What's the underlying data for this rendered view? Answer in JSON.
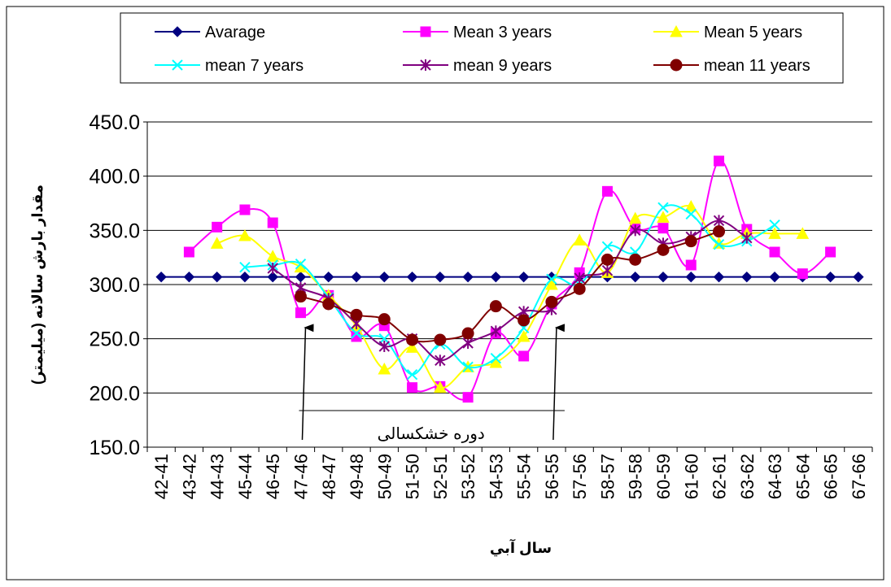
{
  "chart_data": {
    "type": "line",
    "xlabel": "سال آبي",
    "ylabel": "مقدار بارش سالانه (ميليمتر)",
    "ylim": [
      150,
      450
    ],
    "yticks": [
      "150.0",
      "200.0",
      "250.0",
      "300.0",
      "350.0",
      "400.0",
      "450.0"
    ],
    "grid": "horizontal",
    "legend_position": "top",
    "categories": [
      "42-41",
      "43-42",
      "44-43",
      "45-44",
      "46-45",
      "47-46",
      "48-47",
      "49-48",
      "50-49",
      "51-50",
      "52-51",
      "53-52",
      "54-53",
      "55-54",
      "56-55",
      "57-56",
      "58-57",
      "59-58",
      "60-59",
      "61-60",
      "62-61",
      "63-62",
      "64-63",
      "65-64",
      "66-65",
      "67-66"
    ],
    "series": [
      {
        "name": "Avarage",
        "color": "#000080",
        "marker": "diamond",
        "values": [
          307,
          307,
          307,
          307,
          307,
          307,
          307,
          307,
          307,
          307,
          307,
          307,
          307,
          307,
          307,
          307,
          307,
          307,
          307,
          307,
          307,
          307,
          307,
          307,
          307,
          307
        ]
      },
      {
        "name": "Mean 3 years",
        "color": "#FF00FF",
        "marker": "square",
        "values": [
          null,
          330,
          353,
          369,
          357,
          274,
          290,
          252,
          262,
          205,
          206,
          196,
          255,
          234,
          282,
          311,
          386,
          352,
          352,
          318,
          414,
          351,
          330,
          310,
          330,
          null
        ]
      },
      {
        "name": "Mean 5 years",
        "color": "#FFFF00",
        "marker": "triangle",
        "values": [
          null,
          null,
          338,
          345,
          326,
          316,
          290,
          262,
          222,
          242,
          205,
          224,
          228,
          252,
          300,
          341,
          311,
          361,
          362,
          372,
          338,
          347,
          347,
          347,
          null,
          null
        ]
      },
      {
        "name": "mean 7 years",
        "color": "#00FFFF",
        "marker": "x",
        "values": [
          null,
          null,
          null,
          316,
          318,
          319,
          288,
          255,
          250,
          217,
          245,
          224,
          232,
          260,
          305,
          300,
          335,
          330,
          371,
          365,
          337,
          340,
          355,
          null,
          null,
          null
        ]
      },
      {
        "name": "mean 9 years",
        "color": "#800080",
        "marker": "star",
        "values": [
          null,
          null,
          null,
          null,
          315,
          297,
          287,
          264,
          243,
          250,
          230,
          246,
          257,
          275,
          277,
          306,
          313,
          350,
          338,
          344,
          359,
          343,
          null,
          null,
          null,
          null
        ]
      },
      {
        "name": "mean 11 years",
        "color": "#800000",
        "marker": "circle",
        "values": [
          null,
          null,
          null,
          null,
          null,
          289,
          282,
          272,
          268,
          249,
          249,
          255,
          280,
          267,
          284,
          296,
          323,
          323,
          332,
          340,
          349,
          null,
          null,
          null,
          null,
          null
        ]
      }
    ],
    "annotation": {
      "text": "دوره خشکسالی",
      "start_category": "47-46",
      "end_category": "56-55"
    }
  }
}
